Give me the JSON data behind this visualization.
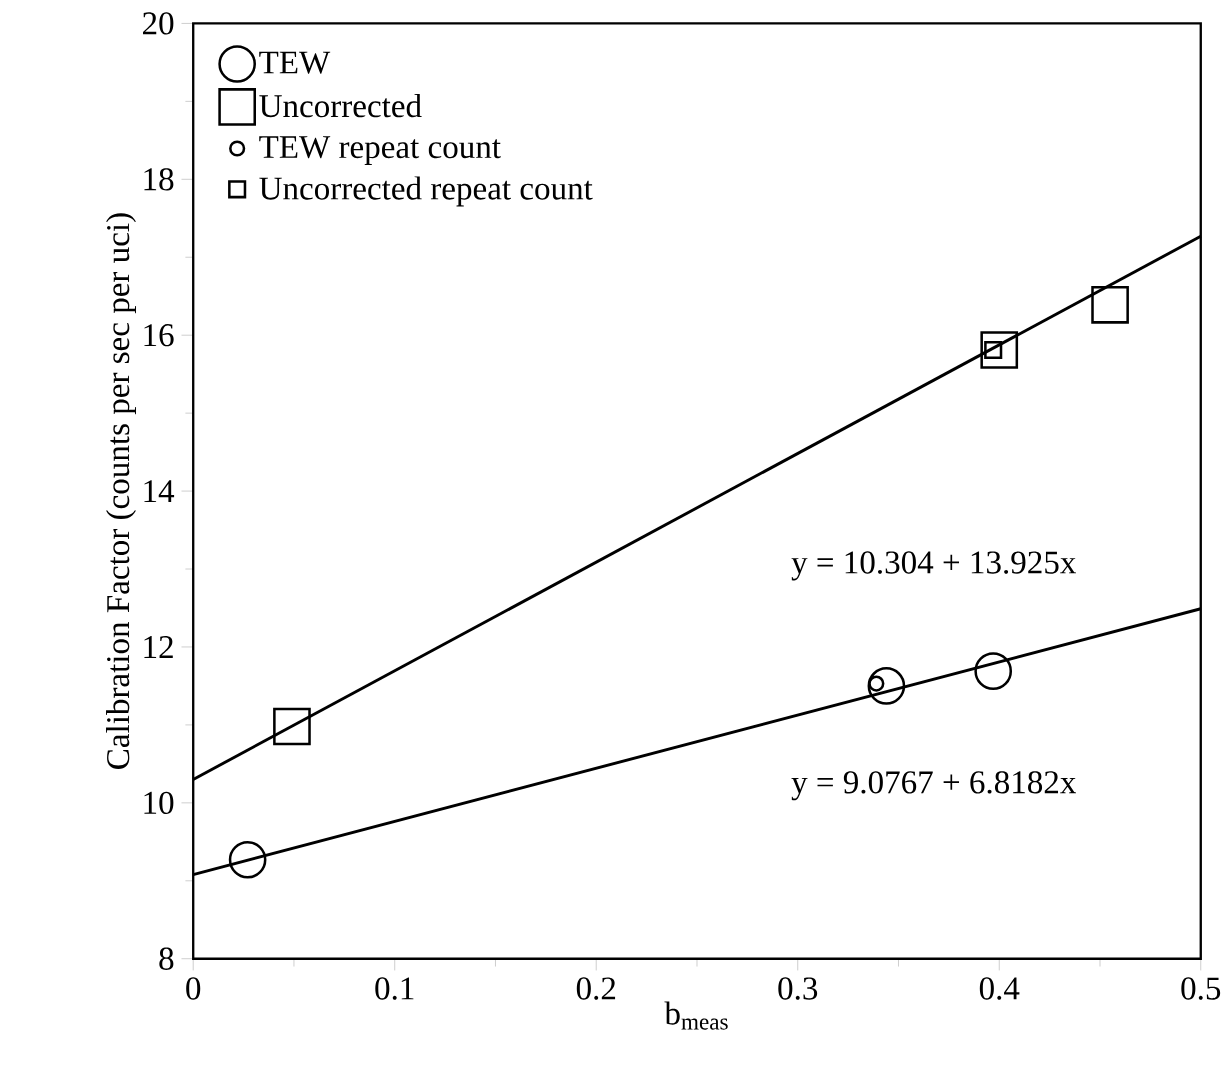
{
  "chart_data": {
    "type": "scatter",
    "xlabel": "b$_{meas}$",
    "ylabel": "Calibration Factor (counts per sec per uci)",
    "xlim": [
      0,
      0.5
    ],
    "ylim": [
      8,
      20
    ],
    "xticks": [
      0,
      0.1,
      0.2,
      0.3,
      0.4,
      0.5
    ],
    "yticks": [
      8,
      10,
      12,
      14,
      16,
      18,
      20
    ],
    "grid": false,
    "legend": "top left",
    "series": [
      {
        "name": "TEW",
        "color": "#000000",
        "marker": "circle",
        "x": [
          0.027,
          0.344,
          0.397
        ],
        "values": [
          9.27,
          11.5,
          11.69
        ]
      },
      {
        "name": "Uncorrected",
        "color": "#000000",
        "marker": "square",
        "x": [
          0.049,
          0.4,
          0.455
        ],
        "values": [
          10.98,
          15.81,
          16.39
        ]
      },
      {
        "name": "TEW repeat count",
        "color": "#000000",
        "marker": "circle",
        "x": [
          0.339
        ],
        "values": [
          11.53
        ]
      },
      {
        "name": "Uncorrected repeat count",
        "color": "#000000",
        "marker": "square",
        "x": [
          0.397
        ],
        "values": [
          15.81
        ]
      },
      {
        "type": "line",
        "color": "#000000",
        "marker": "none",
        "line_style": "solid",
        "x": [
          0,
          0.5
        ],
        "values": [
          10.3,
          17.27
        ]
      },
      {
        "type": "line",
        "color": "#000000",
        "marker": "none",
        "line_style": "solid",
        "x": [
          0,
          0.5
        ],
        "values": [
          9.08,
          12.49
        ]
      }
    ],
    "annotations": [
      "y = 10.304 + 13.925x",
      "y = 9.0767 + 6.8182x"
    ]
  }
}
